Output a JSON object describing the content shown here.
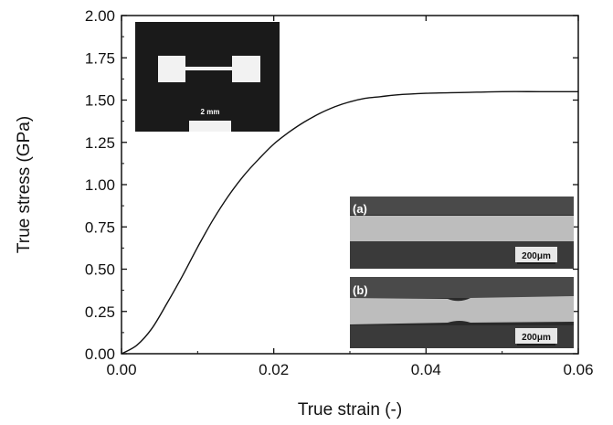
{
  "chart_data": {
    "type": "line",
    "xlabel": "True strain (-)",
    "ylabel": "True stress (GPa)",
    "xlim": [
      0,
      0.06
    ],
    "ylim": [
      0,
      2.0
    ],
    "x_ticks": [
      "0.00",
      "0.02",
      "0.04",
      "0.06"
    ],
    "y_ticks": [
      "0.00",
      "0.25",
      "0.50",
      "0.75",
      "1.00",
      "1.25",
      "1.50",
      "1.75",
      "2.00"
    ],
    "series": [
      {
        "color": "#111111",
        "points": [
          [
            0.0,
            0.0
          ],
          [
            0.002,
            0.05
          ],
          [
            0.004,
            0.15
          ],
          [
            0.006,
            0.3
          ],
          [
            0.008,
            0.46
          ],
          [
            0.01,
            0.63
          ],
          [
            0.012,
            0.79
          ],
          [
            0.014,
            0.93
          ],
          [
            0.016,
            1.05
          ],
          [
            0.018,
            1.15
          ],
          [
            0.02,
            1.24
          ],
          [
            0.022,
            1.31
          ],
          [
            0.024,
            1.37
          ],
          [
            0.026,
            1.42
          ],
          [
            0.028,
            1.46
          ],
          [
            0.03,
            1.49
          ],
          [
            0.032,
            1.51
          ],
          [
            0.034,
            1.52
          ],
          [
            0.036,
            1.53
          ],
          [
            0.04,
            1.54
          ],
          [
            0.045,
            1.545
          ],
          [
            0.05,
            1.55
          ],
          [
            0.055,
            1.55
          ],
          [
            0.06,
            1.55
          ]
        ]
      }
    ],
    "grid": false
  },
  "insets": {
    "specimen_scale_label": "2 mm",
    "micrograph_a": {
      "letter": "(a)",
      "scale_label": "200μm"
    },
    "micrograph_b": {
      "letter": "(b)",
      "scale_label": "200μm"
    }
  }
}
